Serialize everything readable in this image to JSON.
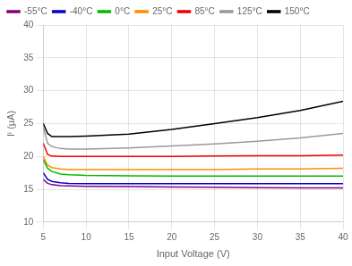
{
  "chart_data": {
    "type": "line",
    "xlabel": "Input Voltage (V)",
    "ylabel": "Iⁱ (μA)",
    "x": [
      5,
      5.5,
      6,
      7,
      8,
      10,
      15,
      20,
      25,
      30,
      35,
      40
    ],
    "series": [
      {
        "name": "-55°C",
        "color": "#800080",
        "values": [
          16.5,
          15.9,
          15.7,
          15.55,
          15.5,
          15.45,
          15.4,
          15.35,
          15.3,
          15.25,
          15.2,
          15.2
        ]
      },
      {
        "name": "-40°C",
        "color": "#0000CC",
        "values": [
          17.5,
          16.5,
          16.2,
          16.0,
          15.9,
          15.85,
          15.85,
          15.85,
          15.85,
          15.85,
          15.85,
          15.85
        ]
      },
      {
        "name": "0°C",
        "color": "#00BB00",
        "values": [
          19.5,
          18.2,
          17.7,
          17.3,
          17.2,
          17.1,
          17.05,
          17.0,
          17.0,
          17.0,
          17.0,
          17.0
        ]
      },
      {
        "name": "25°C",
        "color": "#FF8C00",
        "values": [
          20.0,
          18.7,
          18.3,
          18.1,
          18.0,
          18.0,
          18.0,
          18.0,
          18.0,
          18.1,
          18.1,
          18.2
        ]
      },
      {
        "name": "85°C",
        "color": "#EE0000",
        "values": [
          22.0,
          20.3,
          20.05,
          20.0,
          20.0,
          20.0,
          20.0,
          20.0,
          20.05,
          20.1,
          20.1,
          20.2
        ]
      },
      {
        "name": "125°C",
        "color": "#999999",
        "values": [
          24.5,
          22.0,
          21.5,
          21.2,
          21.1,
          21.1,
          21.3,
          21.6,
          21.9,
          22.3,
          22.8,
          23.5
        ]
      },
      {
        "name": "150°C",
        "color": "#000000",
        "values": [
          25.0,
          23.5,
          23.0,
          23.0,
          23.0,
          23.1,
          23.4,
          24.1,
          25.0,
          25.9,
          27.0,
          28.4
        ]
      }
    ],
    "xlim": [
      5,
      40
    ],
    "ylim": [
      10,
      40
    ],
    "xticks": [
      5,
      10,
      15,
      20,
      25,
      30,
      35,
      40
    ],
    "yticks": [
      10,
      15,
      20,
      25,
      30,
      35,
      40
    ],
    "grid": true,
    "legend": "upper left"
  }
}
